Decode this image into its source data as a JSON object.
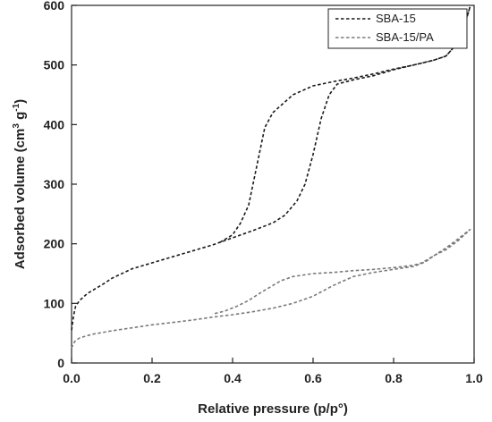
{
  "chart_data": {
    "type": "line",
    "title": "",
    "xlabel": "Relative pressure (p/p°)",
    "ylabel_parts": {
      "main": "Adsorbed volume (cm",
      "sup1": "3",
      "mid": " g",
      "sup2": "-1",
      "end": ")"
    },
    "xlim": [
      0,
      1
    ],
    "ylim": [
      0,
      600
    ],
    "x_ticks": [
      "0.0",
      "0.2",
      "0.4",
      "0.6",
      "0.8",
      "1.0"
    ],
    "y_ticks": [
      "0",
      "100",
      "200",
      "300",
      "400",
      "500",
      "600"
    ],
    "grid": false,
    "legend_position": "top-right",
    "series": [
      {
        "name": "SBA-15",
        "color": "#1a1a1a",
        "points": [
          [
            0.0,
            55
          ],
          [
            0.005,
            80
          ],
          [
            0.01,
            95
          ],
          [
            0.02,
            105
          ],
          [
            0.04,
            117
          ],
          [
            0.06,
            125
          ],
          [
            0.08,
            133
          ],
          [
            0.1,
            142
          ],
          [
            0.15,
            158
          ],
          [
            0.2,
            168
          ],
          [
            0.25,
            178
          ],
          [
            0.3,
            188
          ],
          [
            0.35,
            198
          ],
          [
            0.4,
            210
          ],
          [
            0.45,
            222
          ],
          [
            0.5,
            235
          ],
          [
            0.53,
            248
          ],
          [
            0.56,
            272
          ],
          [
            0.58,
            300
          ],
          [
            0.6,
            350
          ],
          [
            0.62,
            410
          ],
          [
            0.64,
            450
          ],
          [
            0.66,
            468
          ],
          [
            0.7,
            475
          ],
          [
            0.75,
            482
          ],
          [
            0.8,
            492
          ],
          [
            0.85,
            500
          ],
          [
            0.9,
            508
          ],
          [
            0.93,
            515
          ],
          [
            0.95,
            530
          ],
          [
            0.97,
            555
          ],
          [
            0.98,
            575
          ],
          [
            0.99,
            598
          ],
          [
            0.98,
            575
          ],
          [
            0.97,
            555
          ],
          [
            0.95,
            530
          ],
          [
            0.93,
            515
          ],
          [
            0.9,
            508
          ],
          [
            0.85,
            500
          ],
          [
            0.8,
            493
          ],
          [
            0.75,
            485
          ],
          [
            0.7,
            478
          ],
          [
            0.65,
            472
          ],
          [
            0.6,
            465
          ],
          [
            0.55,
            450
          ],
          [
            0.5,
            420
          ],
          [
            0.48,
            395
          ],
          [
            0.46,
            330
          ],
          [
            0.44,
            265
          ],
          [
            0.42,
            235
          ],
          [
            0.4,
            215
          ],
          [
            0.37,
            203
          ]
        ]
      },
      {
        "name": "SBA-15/PA",
        "color": "#7a7a7a",
        "points": [
          [
            0.0,
            25
          ],
          [
            0.005,
            33
          ],
          [
            0.01,
            38
          ],
          [
            0.02,
            42
          ],
          [
            0.05,
            48
          ],
          [
            0.1,
            54
          ],
          [
            0.15,
            59
          ],
          [
            0.2,
            64
          ],
          [
            0.25,
            68
          ],
          [
            0.3,
            72
          ],
          [
            0.35,
            77
          ],
          [
            0.4,
            81
          ],
          [
            0.45,
            86
          ],
          [
            0.5,
            92
          ],
          [
            0.55,
            100
          ],
          [
            0.6,
            112
          ],
          [
            0.65,
            130
          ],
          [
            0.7,
            145
          ],
          [
            0.75,
            152
          ],
          [
            0.8,
            157
          ],
          [
            0.85,
            162
          ],
          [
            0.88,
            170
          ],
          [
            0.9,
            180
          ],
          [
            0.93,
            190
          ],
          [
            0.96,
            205
          ],
          [
            0.99,
            224
          ],
          [
            0.96,
            208
          ],
          [
            0.93,
            193
          ],
          [
            0.9,
            180
          ],
          [
            0.87,
            168
          ],
          [
            0.85,
            164
          ],
          [
            0.8,
            160
          ],
          [
            0.75,
            157
          ],
          [
            0.7,
            155
          ],
          [
            0.65,
            152
          ],
          [
            0.6,
            150
          ],
          [
            0.55,
            145
          ],
          [
            0.52,
            138
          ],
          [
            0.5,
            130
          ],
          [
            0.47,
            118
          ],
          [
            0.44,
            105
          ],
          [
            0.41,
            95
          ],
          [
            0.38,
            87
          ],
          [
            0.35,
            82
          ]
        ]
      }
    ]
  }
}
